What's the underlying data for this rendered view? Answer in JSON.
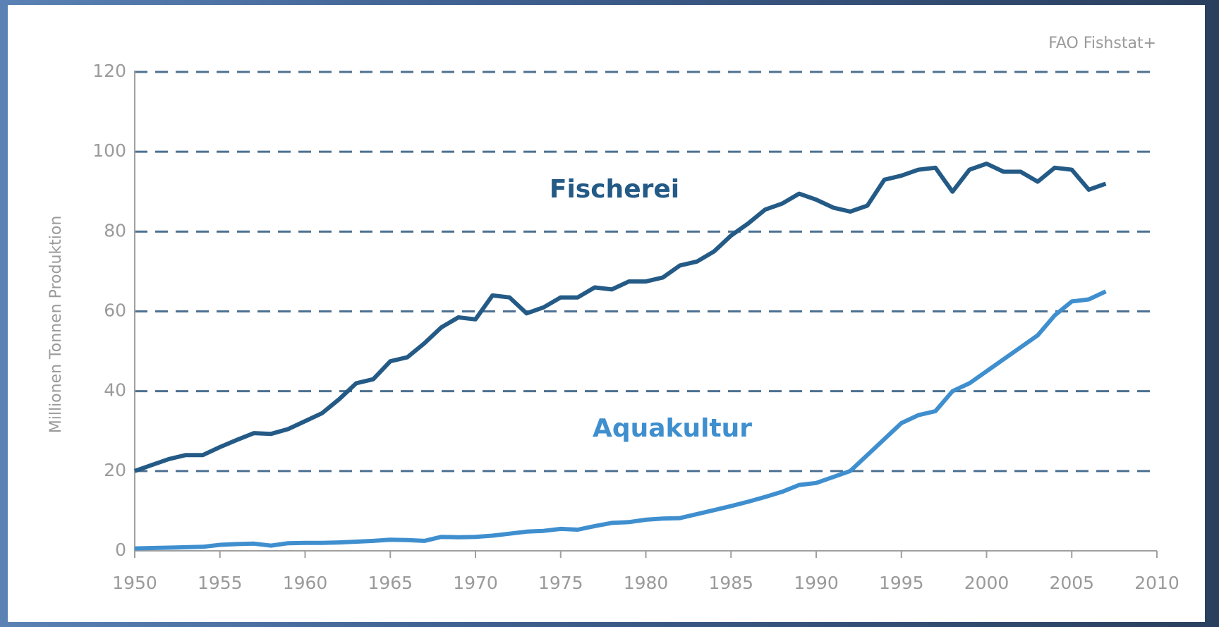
{
  "chart_data": {
    "type": "line",
    "source": "FAO Fishstat+",
    "y_label": "Millionen Tonnen Produktion",
    "x": [
      1950,
      1951,
      1952,
      1953,
      1954,
      1955,
      1956,
      1957,
      1958,
      1959,
      1960,
      1961,
      1962,
      1963,
      1964,
      1965,
      1966,
      1967,
      1968,
      1969,
      1970,
      1971,
      1972,
      1973,
      1974,
      1975,
      1976,
      1977,
      1978,
      1979,
      1980,
      1981,
      1982,
      1983,
      1984,
      1985,
      1986,
      1987,
      1988,
      1989,
      1990,
      1991,
      1992,
      1993,
      1994,
      1995,
      1996,
      1997,
      1998,
      1999,
      2000,
      2001,
      2002,
      2003,
      2004,
      2005,
      2006,
      2007
    ],
    "series": [
      {
        "name": "Fischerei",
        "color": "#245a86",
        "values": [
          20,
          21.5,
          23,
          24,
          24,
          26,
          27.8,
          29.5,
          29.3,
          30.5,
          32.5,
          34.5,
          38,
          42,
          43,
          47.5,
          48.5,
          52,
          56,
          58.5,
          58,
          64,
          63.5,
          59.5,
          61,
          63.5,
          63.5,
          66,
          65.5,
          67.5,
          67.5,
          68.5,
          71.5,
          72.5,
          75,
          79,
          82,
          85.5,
          87,
          89.5,
          88,
          86,
          85,
          86.5,
          93,
          94,
          95.5,
          96,
          90,
          95.5,
          97,
          95,
          95,
          92.5,
          96,
          95.5,
          90.5,
          92
        ]
      },
      {
        "name": "Aquakultur",
        "color": "#3f8fcf",
        "values": [
          0.6,
          0.7,
          0.8,
          0.9,
          1,
          1.5,
          1.7,
          1.8,
          1.3,
          1.9,
          2,
          2,
          2.1,
          2.3,
          2.5,
          2.8,
          2.7,
          2.5,
          3.5,
          3.4,
          3.5,
          3.8,
          4.3,
          4.8,
          5,
          5.5,
          5.3,
          6.2,
          7,
          7.2,
          7.8,
          8.1,
          8.2,
          9.2,
          10.2,
          11.2,
          12.3,
          13.5,
          14.8,
          16.5,
          17,
          18.5,
          20,
          24,
          28,
          32,
          34,
          35,
          40,
          42,
          45,
          48,
          51,
          54,
          59,
          62.5,
          63,
          65
        ]
      }
    ],
    "xlim": [
      1950,
      2010
    ],
    "xticks": [
      1950,
      1955,
      1960,
      1965,
      1970,
      1975,
      1980,
      1985,
      1990,
      1995,
      2000,
      2005,
      2010
    ],
    "ylim": [
      0,
      120
    ],
    "yticks": [
      0,
      20,
      40,
      60,
      80,
      100,
      120
    ],
    "grid": true
  }
}
